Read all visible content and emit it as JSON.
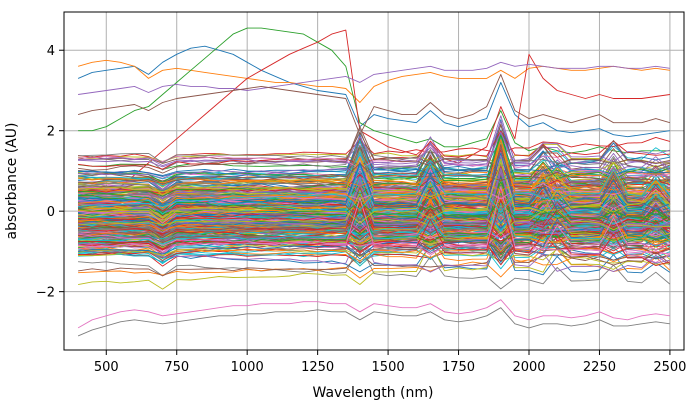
{
  "chart_data": {
    "type": "line",
    "title": "",
    "xlabel": "Wavelength (nm)",
    "ylabel": "absorbance (AU)",
    "xlim": [
      350,
      2550
    ],
    "ylim": [
      -3.45,
      4.95
    ],
    "xticks": [
      500,
      750,
      1000,
      1250,
      1500,
      1750,
      2000,
      2250,
      2500
    ],
    "yticks": [
      -2,
      0,
      2,
      4
    ],
    "xtick_labels": [
      "500",
      "750",
      "1000",
      "1250",
      "1500",
      "1750",
      "2000",
      "2250",
      "2500"
    ],
    "ytick_labels": [
      "−2",
      "0",
      "2",
      "4"
    ],
    "grid": true,
    "legend": "none",
    "x": [
      400,
      450,
      500,
      550,
      600,
      650,
      700,
      750,
      800,
      850,
      900,
      950,
      1000,
      1050,
      1100,
      1150,
      1200,
      1250,
      1300,
      1350,
      1400,
      1450,
      1500,
      1550,
      1600,
      1650,
      1700,
      1750,
      1800,
      1850,
      1900,
      1950,
      2000,
      2050,
      2100,
      2150,
      2200,
      2250,
      2300,
      2350,
      2400,
      2450,
      2500
    ],
    "series_count": 360,
    "series": [
      {
        "values": [
          3.3,
          3.45,
          3.5,
          3.55,
          3.6,
          3.4,
          3.7,
          3.9,
          4.05,
          4.1,
          4.0,
          3.9,
          3.7,
          3.5,
          3.35,
          3.2,
          3.1,
          3.0,
          2.95,
          2.9,
          2.1,
          2.4,
          2.3,
          2.25,
          2.2,
          2.5,
          2.2,
          2.1,
          2.2,
          2.3,
          3.2,
          2.4,
          2.1,
          2.2,
          2.0,
          1.95,
          2.0,
          2.05,
          1.9,
          1.85,
          1.9,
          1.95,
          2.0
        ]
      },
      {
        "values": [
          3.6,
          3.7,
          3.75,
          3.7,
          3.6,
          3.3,
          3.5,
          3.55,
          3.5,
          3.45,
          3.4,
          3.35,
          3.3,
          3.25,
          3.2,
          3.2,
          3.15,
          3.1,
          3.1,
          3.05,
          2.7,
          3.1,
          3.25,
          3.35,
          3.4,
          3.45,
          3.35,
          3.3,
          3.3,
          3.3,
          3.5,
          3.3,
          3.55,
          3.6,
          3.55,
          3.5,
          3.5,
          3.55,
          3.6,
          3.55,
          3.5,
          3.55,
          3.5
        ]
      },
      {
        "values": [
          2.0,
          2.0,
          2.1,
          2.3,
          2.5,
          2.6,
          2.9,
          3.2,
          3.5,
          3.8,
          4.1,
          4.4,
          4.55,
          4.55,
          4.5,
          4.45,
          4.4,
          4.2,
          4.0,
          3.6,
          2.2,
          2.0,
          1.9,
          1.8,
          1.7,
          1.8,
          1.6,
          1.6,
          1.7,
          1.8,
          2.5,
          1.7,
          1.5,
          1.6,
          1.5,
          1.45,
          1.5,
          1.6,
          1.5,
          1.45,
          1.5,
          1.5,
          1.5
        ]
      },
      {
        "values": [
          0.0,
          0.2,
          0.4,
          0.6,
          0.9,
          1.2,
          1.5,
          1.8,
          2.1,
          2.4,
          2.7,
          3.0,
          3.3,
          3.5,
          3.7,
          3.9,
          4.05,
          4.2,
          4.4,
          4.5,
          2.0,
          1.8,
          1.6,
          1.5,
          1.4,
          1.7,
          1.3,
          1.2,
          1.4,
          1.6,
          2.6,
          1.8,
          3.9,
          3.3,
          3.0,
          2.9,
          2.8,
          2.9,
          2.8,
          2.8,
          2.8,
          2.85,
          2.9
        ]
      },
      {
        "values": [
          2.9,
          2.95,
          3.0,
          3.05,
          3.1,
          2.95,
          3.1,
          3.15,
          3.1,
          3.1,
          3.05,
          3.05,
          3.0,
          3.05,
          3.1,
          3.15,
          3.2,
          3.25,
          3.3,
          3.35,
          3.2,
          3.4,
          3.45,
          3.5,
          3.55,
          3.6,
          3.5,
          3.5,
          3.5,
          3.55,
          3.7,
          3.6,
          3.65,
          3.6,
          3.55,
          3.55,
          3.55,
          3.6,
          3.6,
          3.55,
          3.55,
          3.6,
          3.55
        ]
      },
      {
        "values": [
          2.4,
          2.5,
          2.55,
          2.6,
          2.65,
          2.5,
          2.7,
          2.8,
          2.85,
          2.9,
          2.95,
          3.0,
          3.05,
          3.1,
          3.05,
          3.0,
          2.95,
          2.9,
          2.85,
          2.8,
          1.9,
          2.6,
          2.5,
          2.4,
          2.4,
          2.7,
          2.4,
          2.3,
          2.4,
          2.6,
          3.4,
          2.5,
          2.3,
          2.4,
          2.3,
          2.2,
          2.3,
          2.4,
          2.2,
          2.2,
          2.2,
          2.3,
          2.2
        ]
      },
      {
        "values": [
          -2.9,
          -2.7,
          -2.6,
          -2.5,
          -2.45,
          -2.5,
          -2.6,
          -2.55,
          -2.5,
          -2.45,
          -2.4,
          -2.35,
          -2.35,
          -2.3,
          -2.3,
          -2.3,
          -2.25,
          -2.25,
          -2.3,
          -2.3,
          -2.5,
          -2.3,
          -2.35,
          -2.4,
          -2.4,
          -2.3,
          -2.5,
          -2.55,
          -2.5,
          -2.4,
          -2.2,
          -2.6,
          -2.7,
          -2.6,
          -2.6,
          -2.65,
          -2.6,
          -2.5,
          -2.65,
          -2.7,
          -2.6,
          -2.55,
          -2.6
        ]
      },
      {
        "values": [
          -3.1,
          -2.95,
          -2.85,
          -2.75,
          -2.7,
          -2.75,
          -2.8,
          -2.75,
          -2.7,
          -2.65,
          -2.6,
          -2.6,
          -2.55,
          -2.55,
          -2.5,
          -2.5,
          -2.5,
          -2.45,
          -2.5,
          -2.5,
          -2.7,
          -2.5,
          -2.55,
          -2.6,
          -2.6,
          -2.5,
          -2.7,
          -2.75,
          -2.7,
          -2.6,
          -2.4,
          -2.8,
          -2.9,
          -2.8,
          -2.8,
          -2.85,
          -2.8,
          -2.7,
          -2.85,
          -2.85,
          -2.8,
          -2.75,
          -2.8
        ]
      }
    ]
  }
}
